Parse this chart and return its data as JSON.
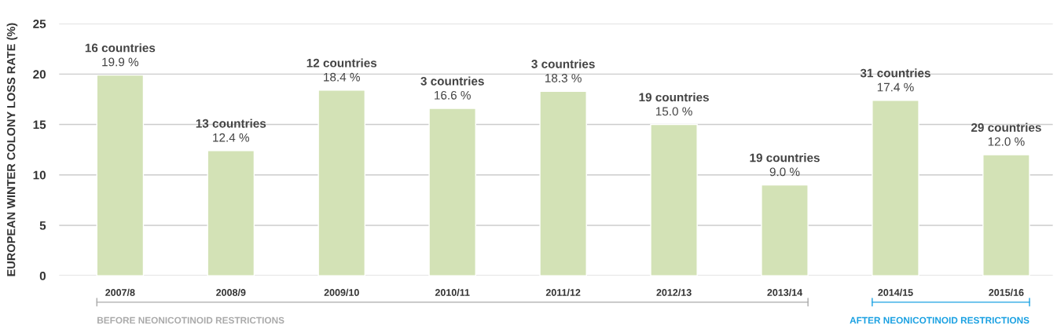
{
  "chart_data": {
    "type": "bar",
    "ylabel": "EUROPEAN WINTER COLONY LOSS RATE (%)",
    "categories": [
      "2007/8",
      "2008/9",
      "2009/10",
      "2010/11",
      "2011/12",
      "2012/13",
      "2013/14",
      "2014/15",
      "2015/16"
    ],
    "values": [
      19.9,
      12.4,
      18.4,
      16.6,
      18.3,
      15.0,
      9.0,
      17.4,
      12.0
    ],
    "value_labels": [
      "16 countries\n19.9 %",
      "13 countries\n12.4 %",
      "12 countries\n18.4 %",
      "3 countries\n16.6 %",
      "3 countries\n18.3 %",
      "19 countries\n15.0 %",
      "19 countries\n9.0 %",
      "31 countries\n17.4 %",
      "29 countries\n12.0 %"
    ],
    "color": "#d3e2b6",
    "ylim": [
      0,
      25
    ],
    "yticks": [
      0,
      5,
      10,
      15,
      20,
      25
    ],
    "grid": "y",
    "annotations": [
      "BEFORE NEONICOTINOID RESTRICTIONS",
      "AFTER NEONICOTINOID RESTRICTIONS"
    ]
  }
}
